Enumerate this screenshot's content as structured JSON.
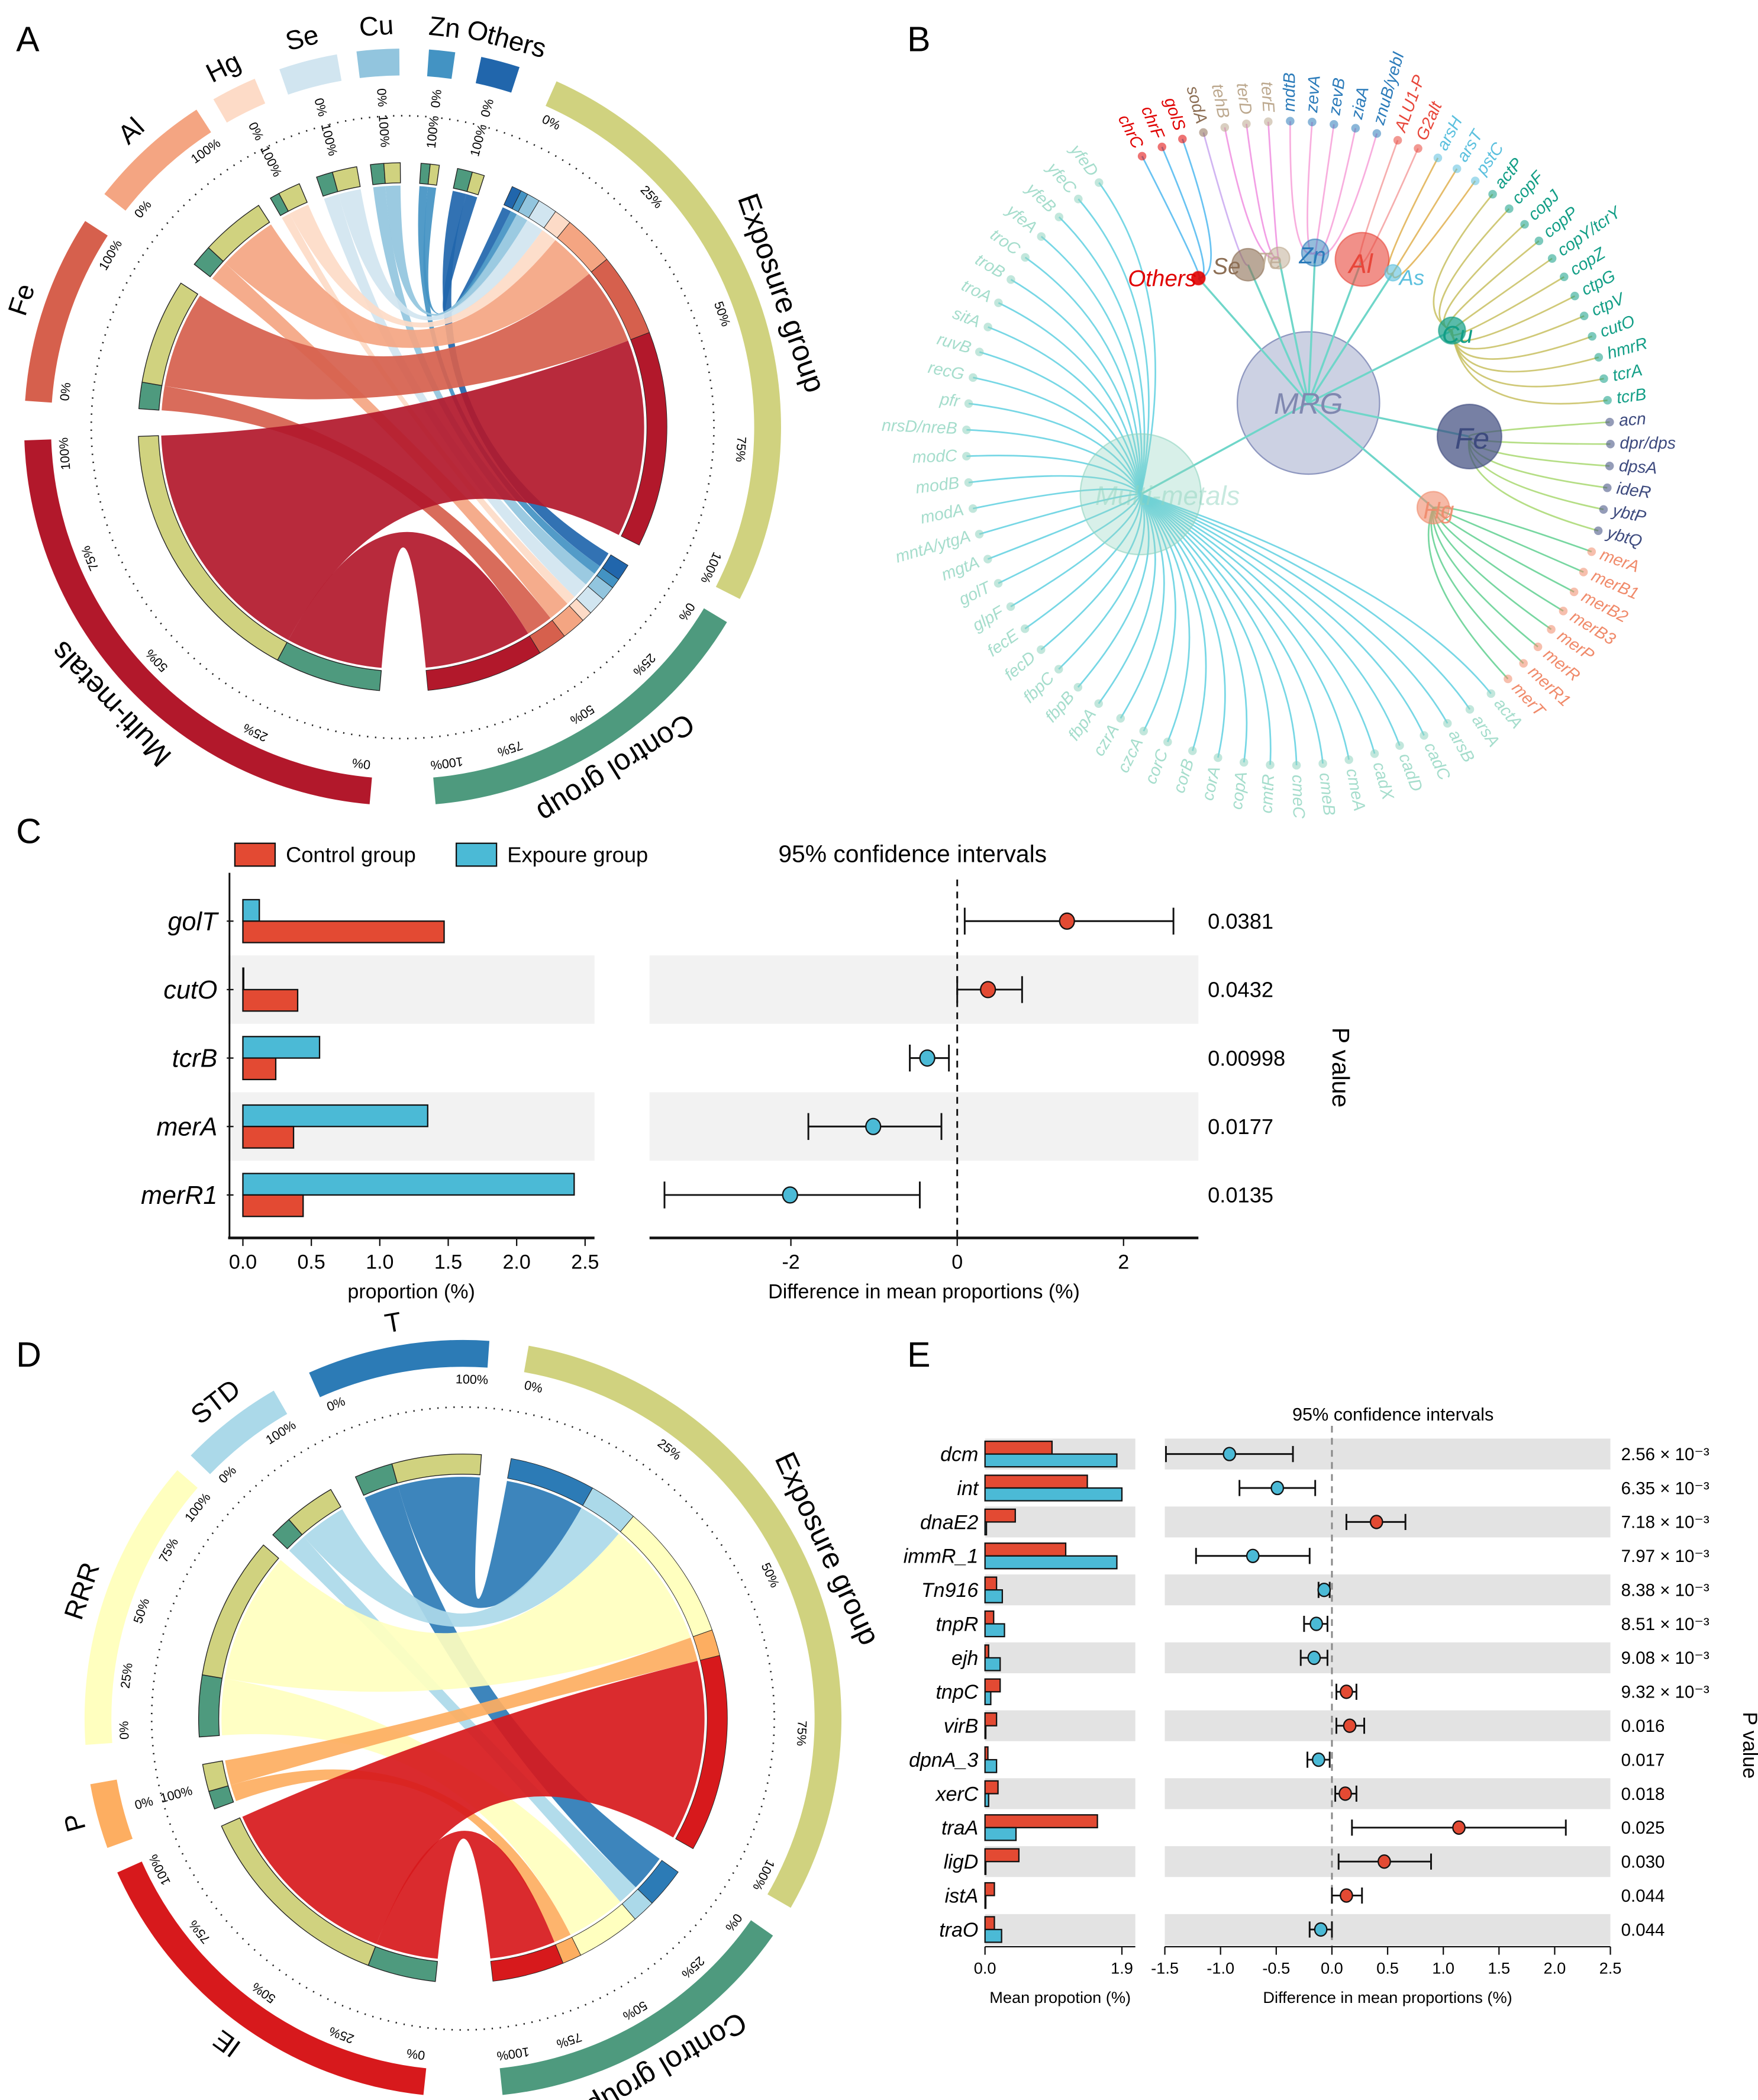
{
  "panels": {
    "a": "A",
    "b": "B",
    "c": "C",
    "d": "D",
    "e": "E"
  },
  "chart_data": [
    {
      "type": "chord",
      "panel": "A",
      "tick_labels": [
        "0%",
        "25%",
        "50%",
        "75%",
        "100%"
      ],
      "groups": [
        {
          "name": "Exposure group",
          "color": "#d0d27f"
        },
        {
          "name": "Control group",
          "color": "#4e9a7e"
        }
      ],
      "sectors": [
        {
          "name": "Multi-metals",
          "color": "#b2182b",
          "exposure_fraction": 0.72
        },
        {
          "name": "Fe",
          "color": "#d6604d",
          "exposure_fraction": 0.8
        },
        {
          "name": "Al",
          "color": "#f4a582",
          "exposure_fraction": 0.75
        },
        {
          "name": "Hg",
          "color": "#fddbc7",
          "exposure_fraction": 0.7
        },
        {
          "name": "Se",
          "color": "#d1e5f0",
          "exposure_fraction": 0.6
        },
        {
          "name": "Cu",
          "color": "#92c5de",
          "exposure_fraction": 0.55
        },
        {
          "name": "Zn",
          "color": "#4393c3",
          "exposure_fraction": 0.5
        },
        {
          "name": "Others",
          "color": "#2166ac",
          "exposure_fraction": 0.45
        }
      ]
    },
    {
      "type": "network",
      "panel": "B",
      "root": {
        "name": "MRG",
        "color": "#9aa3c8"
      },
      "groups": [
        {
          "name": "Multi-metals",
          "color": "#8fd4bf",
          "edge": "#5fd0e0",
          "genes": [
            "actA",
            "arsA",
            "arsB",
            "cadC",
            "cadD",
            "cadX",
            "cmeA",
            "cmeB",
            "cmeC",
            "cmtR",
            "copA",
            "corA",
            "corB",
            "corC",
            "czcA",
            "czrA",
            "fbpA",
            "fbpB",
            "fbpC",
            "fecD",
            "fecE",
            "glpF",
            "golT",
            "mgtA",
            "mntA/ytgA",
            "modA",
            "modB",
            "modC",
            "nrsD/nreB",
            "pfr",
            "recG",
            "ruvB",
            "sitA",
            "troA",
            "troB",
            "troC",
            "yfeA",
            "yfeB",
            "yfeC",
            "yfeD"
          ]
        },
        {
          "name": "Others",
          "color": "#e00000",
          "edge": "#4fb8f0",
          "genes": [
            "chrC",
            "chrF",
            "golS"
          ]
        },
        {
          "name": "Se",
          "color": "#8c6e54",
          "edge": "#c9a8f0",
          "genes": [
            "sodA"
          ]
        },
        {
          "name": "Te",
          "color": "#bca88e",
          "edge": "#f08ee0",
          "genes": [
            "tehB",
            "terD",
            "terE"
          ]
        },
        {
          "name": "Zn",
          "color": "#2b7bba",
          "edge": "#f7a0d8",
          "genes": [
            "mdtB",
            "zevA",
            "zevB",
            "ziaA",
            "znuB/yebI"
          ]
        },
        {
          "name": "Al",
          "color": "#e8463a",
          "edge": "#f5a0a0",
          "genes": [
            "ALU1-P",
            "G2alt"
          ]
        },
        {
          "name": "As",
          "color": "#5bc0de",
          "edge": "#e0b050",
          "genes": [
            "arsH",
            "arsT",
            "pstC"
          ]
        },
        {
          "name": "Cu",
          "color": "#129e86",
          "edge": "#c8c060",
          "genes": [
            "actP",
            "copF",
            "copJ",
            "copP",
            "copY/tcrY",
            "copZ",
            "ctpG",
            "ctpV",
            "cutO",
            "hmrR",
            "tcrA",
            "tcrB"
          ]
        },
        {
          "name": "Fe",
          "color": "#3d4a7e",
          "edge": "#a8d870",
          "genes": [
            "acn",
            "dpr/dps",
            "dpsA",
            "ideR",
            "ybtP",
            "ybtQ"
          ]
        },
        {
          "name": "Hg",
          "color": "#f08a6a",
          "edge": "#60d090",
          "genes": [
            "merA",
            "merB1",
            "merB2",
            "merB3",
            "merP",
            "merR",
            "merR1",
            "merT"
          ]
        }
      ]
    },
    {
      "type": "bar",
      "panel": "C",
      "title": "95% confidence intervals",
      "legend": [
        {
          "label": "Control group",
          "color": "#e34a33"
        },
        {
          "label": "Expoure group",
          "color": "#4bbad6"
        }
      ],
      "categories": [
        "golT",
        "cutO",
        "tcrB",
        "merA",
        "merR1"
      ],
      "series": [
        {
          "name": "Control group",
          "values": [
            1.47,
            0.4,
            0.24,
            0.37,
            0.44
          ]
        },
        {
          "name": "Expoure group",
          "values": [
            0.12,
            0.0,
            0.56,
            1.35,
            2.42
          ]
        }
      ],
      "difference": [
        1.32,
        0.37,
        -0.36,
        -1.01,
        -2.01
      ],
      "ci_low": [
        0.09,
        0.0,
        -0.57,
        -1.79,
        -3.52
      ],
      "ci_high": [
        2.6,
        0.78,
        -0.1,
        -0.19,
        -0.45
      ],
      "p_values": [
        "0.0381",
        "0.0432",
        "0.00998",
        "0.0177",
        "0.0135"
      ],
      "xlabel_bar": "proportion (%)",
      "xlabel_diff": "Difference in mean proportions (%)",
      "ylabel_right": "P value",
      "bar_ticks": [
        "0.0",
        "0.5",
        "1.0",
        "1.5",
        "2.0",
        "2.5"
      ],
      "diff_ticks": [
        "-2",
        "0",
        "2"
      ],
      "bar_xlim": [
        0,
        2.5
      ],
      "diff_xlim": [
        -3.7,
        2.9
      ]
    },
    {
      "type": "chord",
      "panel": "D",
      "tick_labels": [
        "0%",
        "25%",
        "50%",
        "75%",
        "100%"
      ],
      "groups": [
        {
          "name": "Exposure group",
          "color": "#d0d27f"
        },
        {
          "name": "Control group",
          "color": "#4e9a7e"
        }
      ],
      "sectors": [
        {
          "name": "IE",
          "color": "#d7191c",
          "exposure_fraction": 0.75
        },
        {
          "name": "P",
          "color": "#fdae61",
          "exposure_fraction": 0.6
        },
        {
          "name": "RRR",
          "color": "#ffffbf",
          "exposure_fraction": 0.7
        },
        {
          "name": "STD",
          "color": "#abd9e9",
          "exposure_fraction": 0.7
        },
        {
          "name": "T",
          "color": "#2c7bb6",
          "exposure_fraction": 0.7
        }
      ]
    },
    {
      "type": "bar",
      "panel": "E",
      "title": "95% confidence intervals",
      "categories": [
        "dcm",
        "int",
        "dnaE2",
        "immR_1",
        "Tn916",
        "tnpR",
        "ejh",
        "tnpC",
        "virB",
        "dpnA_3",
        "xerC",
        "traA",
        "ligD",
        "istA",
        "traO"
      ],
      "series": [
        {
          "name": "Control group",
          "values": [
            0.93,
            1.42,
            0.42,
            1.12,
            0.16,
            0.12,
            0.05,
            0.21,
            0.16,
            0.04,
            0.18,
            1.56,
            0.47,
            0.13,
            0.13
          ]
        },
        {
          "name": "Exposure group",
          "values": [
            1.83,
            1.9,
            0.02,
            1.83,
            0.24,
            0.27,
            0.21,
            0.08,
            0.01,
            0.16,
            0.05,
            0.43,
            0.01,
            0.0,
            0.23
          ]
        }
      ],
      "difference": [
        -0.92,
        -0.49,
        0.4,
        -0.71,
        -0.07,
        -0.14,
        -0.16,
        0.13,
        0.16,
        -0.12,
        0.12,
        1.14,
        0.47,
        0.13,
        -0.1
      ],
      "ci_low": [
        -1.49,
        -0.83,
        0.13,
        -1.22,
        -0.12,
        -0.25,
        -0.28,
        0.04,
        0.04,
        -0.22,
        0.03,
        0.18,
        0.06,
        0.0,
        -0.2
      ],
      "ci_high": [
        -0.35,
        -0.15,
        0.66,
        -0.2,
        -0.02,
        -0.04,
        -0.04,
        0.22,
        0.29,
        -0.02,
        0.22,
        2.1,
        0.89,
        0.27,
        0.0
      ],
      "p_values": [
        "2.56 × 10⁻³",
        "6.35 × 10⁻³",
        "7.18 × 10⁻³",
        "7.97 × 10⁻³",
        "8.38 × 10⁻³",
        "8.51 × 10⁻³",
        "9.08 × 10⁻³",
        "9.32 × 10⁻³",
        "0.016",
        "0.017",
        "0.018",
        "0.025",
        "0.030",
        "0.044",
        "0.044"
      ],
      "xlabel_bar": "Mean propotion (%)",
      "xlabel_diff": "Difference in mean proportions (%)",
      "ylabel_right": "P value",
      "bar_ticks": [
        "0.0",
        "1.9"
      ],
      "diff_ticks": [
        "-1.5",
        "-1.0",
        "-0.5",
        "0.0",
        "0.5",
        "1.0",
        "1.5",
        "2.0",
        "2.5"
      ],
      "bar_xlim": [
        0,
        1.9
      ],
      "diff_xlim": [
        -1.5,
        2.5
      ]
    }
  ]
}
